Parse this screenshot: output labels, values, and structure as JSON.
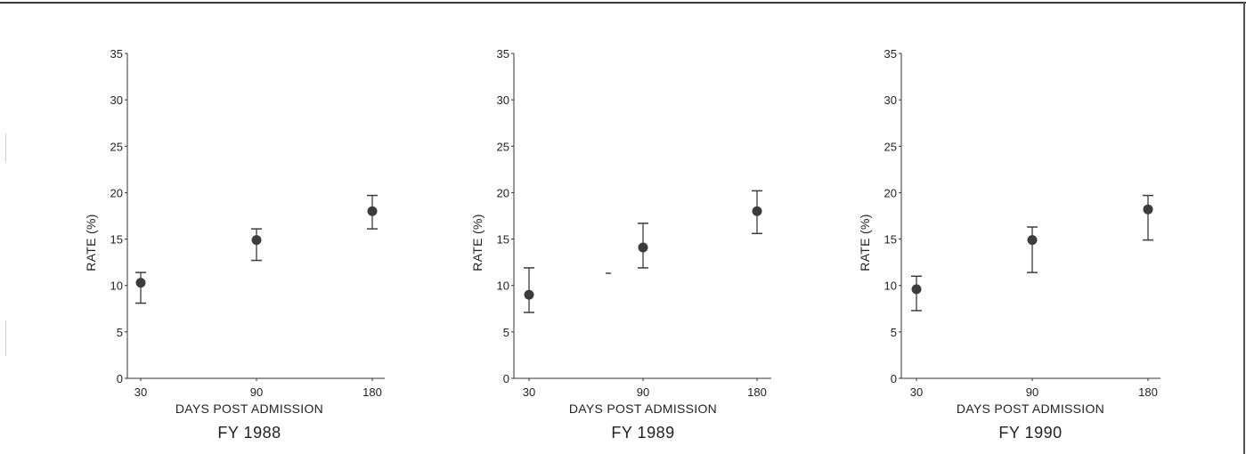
{
  "chart_data": [
    {
      "type": "scatter",
      "title": "FY 1988",
      "xlabel": "DAYS POST ADMISSION",
      "ylabel": "RATE (%)",
      "categories": [
        "30",
        "90",
        "180"
      ],
      "ylim": [
        0,
        35
      ],
      "yticks": [
        0,
        5,
        10,
        15,
        20,
        25,
        30,
        35
      ],
      "grid": false,
      "points": [
        {
          "x": 30,
          "y": 10.3,
          "low": 8.1,
          "high": 11.4
        },
        {
          "x": 90,
          "y": 14.9,
          "low": 12.7,
          "high": 16.1
        },
        {
          "x": 180,
          "y": 18.0,
          "low": 16.1,
          "high": 19.7
        }
      ]
    },
    {
      "type": "scatter",
      "title": "FY 1989",
      "xlabel": "DAYS POST ADMISSION",
      "ylabel": "RATE (%)",
      "categories": [
        "30",
        "90",
        "180"
      ],
      "ylim": [
        0,
        35
      ],
      "yticks": [
        0,
        5,
        10,
        15,
        20,
        25,
        30,
        35
      ],
      "grid": false,
      "points": [
        {
          "x": 30,
          "y": 9.0,
          "low": 7.1,
          "high": 11.9
        },
        {
          "x": 90,
          "y": 14.1,
          "low": 11.9,
          "high": 16.7
        },
        {
          "x": 180,
          "y": 18.0,
          "low": 15.6,
          "high": 20.2
        }
      ]
    },
    {
      "type": "scatter",
      "title": "FY 1990",
      "xlabel": "DAYS POST ADMISSION",
      "ylabel": "RATE (%)",
      "categories": [
        "30",
        "90",
        "180"
      ],
      "ylim": [
        0,
        35
      ],
      "yticks": [
        0,
        5,
        10,
        15,
        20,
        25,
        30,
        35
      ],
      "grid": false,
      "points": [
        {
          "x": 30,
          "y": 9.6,
          "low": 7.3,
          "high": 11.0
        },
        {
          "x": 90,
          "y": 14.9,
          "low": 11.4,
          "high": 16.3
        },
        {
          "x": 180,
          "y": 18.2,
          "low": 14.9,
          "high": 19.7
        }
      ]
    }
  ],
  "colors": {
    "marker": "#3c3c3c",
    "axis": "#333333",
    "text": "#222222"
  }
}
